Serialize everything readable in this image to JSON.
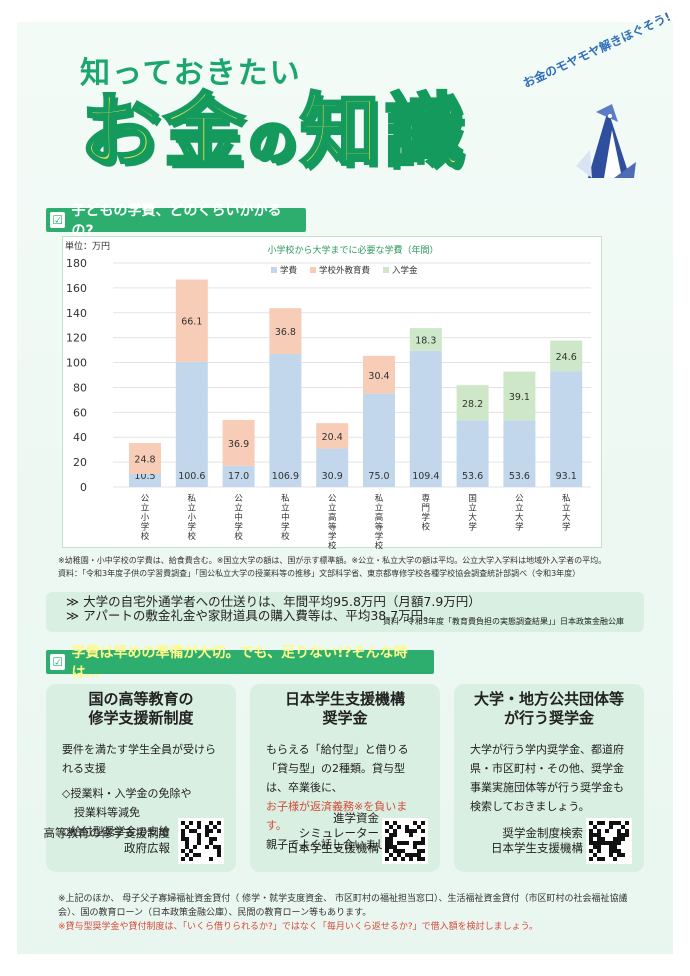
{
  "header": {
    "subtitle": "知っておきたい",
    "title_part1": "お金",
    "title_no": "の",
    "title_part2": "知識",
    "tagline": "お金のモヤモヤ解きほぐそう!"
  },
  "section1": {
    "heading": "子どもの学費、どのくらいかかるの?"
  },
  "chart_data": {
    "type": "bar",
    "title": "小学校から大学までに必要な学費（年間）",
    "unit_label": "単位：万円",
    "ylim": [
      0,
      180
    ],
    "yticks": [
      0,
      20,
      40,
      60,
      80,
      100,
      120,
      140,
      160,
      180
    ],
    "legend_position": "top",
    "categories": [
      "公立小学校",
      "私立小学校",
      "公立中学校",
      "私立中学校",
      "公立高等学校",
      "私立高等学校",
      "専門学校",
      "国立大学",
      "公立大学",
      "私立大学"
    ],
    "series": [
      {
        "name": "学費",
        "color": "#c2d7ec",
        "values": [
          10.5,
          100.6,
          17.0,
          106.9,
          30.9,
          75.0,
          109.4,
          53.6,
          53.6,
          93.1
        ]
      },
      {
        "name": "学校外教育費",
        "color": "#f7cdb8",
        "values": [
          24.8,
          66.1,
          36.9,
          36.8,
          20.4,
          30.4,
          null,
          null,
          null,
          null
        ]
      },
      {
        "name": "入学金",
        "color": "#cfe7c9",
        "values": [
          null,
          null,
          null,
          null,
          null,
          null,
          18.3,
          28.2,
          39.1,
          24.6
        ]
      }
    ],
    "labels": {
      "s0": [
        "10.5",
        "100.6",
        "17.0",
        "106.9",
        "30.9",
        "75.0",
        "109.4",
        "53.6",
        "53.6",
        "93.1"
      ],
      "s1": [
        "24.8",
        "66.1",
        "36.9",
        "36.8",
        "20.4",
        "30.4",
        "",
        "",
        "",
        ""
      ],
      "s2": [
        "",
        "",
        "",
        "",
        "",
        "",
        "18.3",
        "28.2",
        "39.1",
        "24.6"
      ]
    }
  },
  "notes": {
    "line1": "※幼稚園・小中学校の学費は、給食費含む。※国立大学の額は、国が示す標準額。※公立・私立大学の額は平均。公立大学入学料は地域外入学者の平均。",
    "line2": "資料：「令和3年度子供の学習費調査」「国公私立大学の授業料等の推移」文部科学省、東京都専修学校各種学校協会調査統計部調べ（令和3年度）"
  },
  "info": {
    "line1": "大学の自宅外通学者への仕送りは、年間平均95.8万円（月額7.9万円）",
    "line2": "アパートの敷金礼金や家財道具の購入費等は、平均38.7万円。",
    "source": "資料「令和3年度「教育費負担の実態調査結果」」日本政策金融公庫"
  },
  "section2": {
    "heading": "学費は早めの準備が大切。でも、足りない!?そんな時は…"
  },
  "cards": [
    {
      "title1": "国の高等教育の",
      "title2": "修学支援新制度",
      "body1": "要件を満たす学生全員が受けられる支援",
      "body2": "◇授業料・入学金の免除や",
      "body3": "授業料等減免",
      "body4": "◇給付型奨学金の支給",
      "body_red": "",
      "body5": "",
      "foot1": "高等教育の修学支援制度",
      "foot2": "政府広報",
      "foot3": ""
    },
    {
      "title1": "日本学生支援機構",
      "title2": "奨学金",
      "body1": "もらえる「給付型」と借りる「貸与型」の2種類。貸与型は、卒業後に、",
      "body_red": "お子様が返済義務※を負います。",
      "body5": "親子でよく話し合いましょう。",
      "foot1": "進学資金",
      "foot2": "シミュレーター",
      "foot3": "日本学生支援機構"
    },
    {
      "title1": "大学・地方公共団体等",
      "title2": "が行う奨学金",
      "body1": "大学が行う学内奨学金、都道府県・市区町村・その他、奨学金事業実施団体等が行う奨学金も検索しておきましょう。",
      "body_red": "",
      "body5": "",
      "foot1": "奨学金制度検索",
      "foot2": "日本学生支援機構",
      "foot3": ""
    }
  ],
  "footnote": {
    "line1": "※上記のほか、 母子父子寡婦福祉資金貸付（ 修学・就学支度資金、 市区町村の福祉担当窓口）、生活福祉資金貸付（市区町村の社会福祉協議会）、国の教育ローン（日本政策金融公庫）、民間の教育ローン等もあります。",
    "line2": "※貸与型奨学金や貸付制度は、「いくら借りられるか?」ではなく「毎月いくら返せるか?」で借入額を検討しましょう。"
  }
}
